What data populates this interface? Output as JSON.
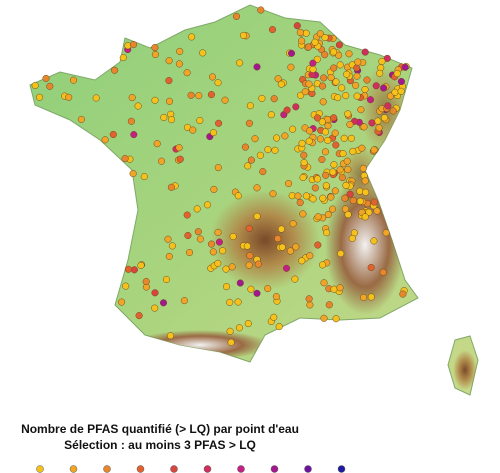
{
  "title": {
    "line1": "Nombre de PFAS quantifié (> LQ) par point d'eau",
    "line2": "Sélection : au moins 3 PFAS > LQ"
  },
  "legend": {
    "colors": [
      "#f4c21b",
      "#f0a526",
      "#e8862c",
      "#e2622f",
      "#d9443c",
      "#d02e5c",
      "#c41f82",
      "#a3178f",
      "#6e12a0",
      "#1f1aa0"
    ]
  }
}
